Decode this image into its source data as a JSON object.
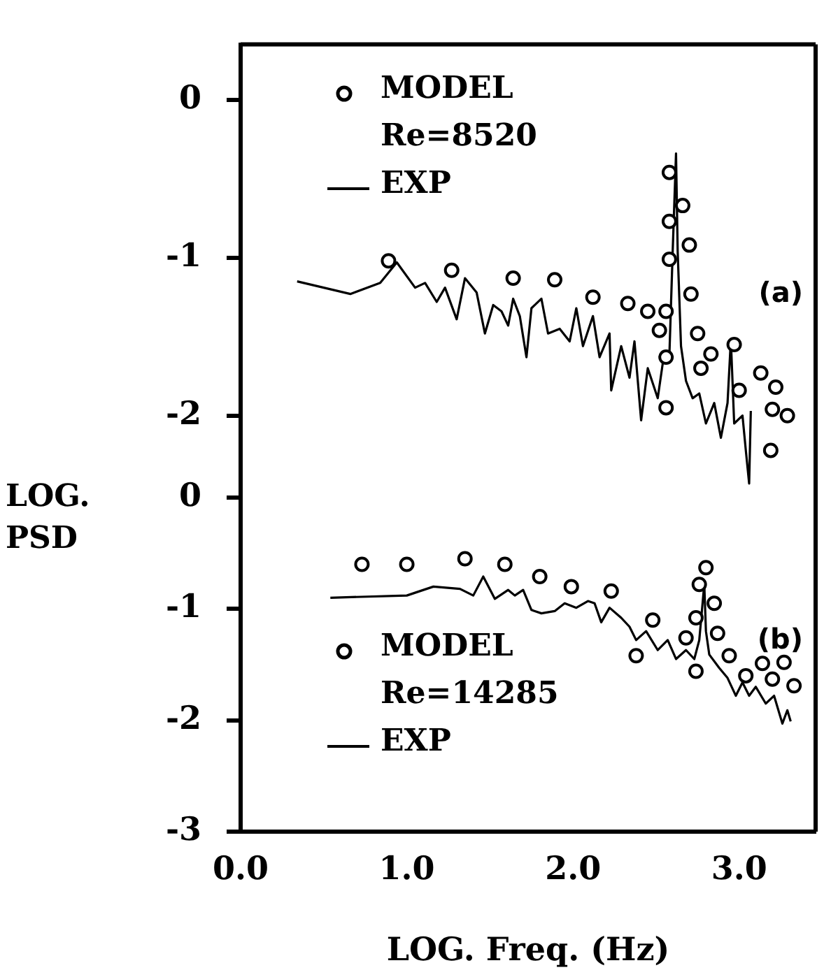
{
  "chart_data": [
    {
      "type": "line",
      "legend": "top left",
      "legend_title": "Re=8520",
      "annotations": [
        "(a)"
      ],
      "xlim": [
        0,
        3.46
      ],
      "ylim": [
        -2.45,
        0.35
      ],
      "yticks": [
        0,
        -1,
        -2
      ],
      "tick_labels": "y",
      "series": [
        {
          "name": "MODEL",
          "type": "scatter",
          "marker": "circle",
          "color": "#000000",
          "x": [
            0.89,
            1.27,
            1.64,
            1.89,
            2.12,
            2.33,
            2.45,
            2.52,
            2.56,
            2.56,
            2.56,
            2.58,
            2.58,
            2.58,
            2.66,
            2.7,
            2.71,
            2.75,
            2.83,
            2.77,
            2.97,
            3.0,
            3.13,
            3.22,
            3.2,
            3.29,
            3.19
          ],
          "values": [
            -1.02,
            -1.08,
            -1.13,
            -1.14,
            -1.25,
            -1.29,
            -1.34,
            -1.46,
            -1.34,
            -1.63,
            -1.95,
            -1.01,
            -0.77,
            -0.46,
            -0.67,
            -0.92,
            -1.23,
            -1.48,
            -1.61,
            -1.7,
            -1.55,
            -1.84,
            -1.73,
            -1.82,
            -1.96,
            -2.0,
            -2.22
          ]
        },
        {
          "name": "EXP",
          "type": "line",
          "marker": "none",
          "color": "#000000",
          "x": [
            0.34,
            0.66,
            0.84,
            0.94,
            1.05,
            1.11,
            1.18,
            1.23,
            1.3,
            1.35,
            1.42,
            1.47,
            1.52,
            1.57,
            1.61,
            1.64,
            1.68,
            1.72,
            1.75,
            1.81,
            1.85,
            1.92,
            1.98,
            2.02,
            2.06,
            2.12,
            2.16,
            2.22,
            2.23,
            2.29,
            2.34,
            2.37,
            2.41,
            2.45,
            2.51,
            2.54,
            2.58,
            2.6,
            2.62,
            2.63,
            2.65,
            2.68,
            2.72,
            2.76,
            2.8,
            2.85,
            2.89,
            2.93,
            2.95,
            2.97,
            3.02,
            3.04,
            3.06,
            3.07
          ],
          "values": [
            -1.15,
            -1.23,
            -1.16,
            -1.03,
            -1.19,
            -1.16,
            -1.28,
            -1.19,
            -1.39,
            -1.13,
            -1.22,
            -1.48,
            -1.3,
            -1.34,
            -1.43,
            -1.26,
            -1.37,
            -1.63,
            -1.32,
            -1.26,
            -1.48,
            -1.45,
            -1.53,
            -1.32,
            -1.56,
            -1.37,
            -1.63,
            -1.48,
            -1.84,
            -1.56,
            -1.76,
            -1.53,
            -2.03,
            -1.7,
            -1.89,
            -1.67,
            -1.62,
            -0.96,
            -0.34,
            -0.96,
            -1.56,
            -1.78,
            -1.89,
            -1.86,
            -2.05,
            -1.92,
            -2.14,
            -1.92,
            -1.52,
            -2.05,
            -2.0,
            -2.22,
            -2.43,
            -1.97
          ]
        }
      ]
    },
    {
      "type": "line",
      "xlabel": "LOG. Freq. (Hz)",
      "ylabel": "LOG. PSD",
      "legend": "bottom left",
      "legend_title": "Re=14285",
      "annotations": [
        "(b)"
      ],
      "xlim": [
        0,
        3.46
      ],
      "xticks": [
        {
          "value": 0,
          "label": "0.0"
        },
        {
          "value": 1,
          "label": "1.0"
        },
        {
          "value": 2,
          "label": "2.0"
        },
        {
          "value": 3,
          "label": "3.0"
        }
      ],
      "ylim": [
        -3,
        0.2
      ],
      "yticks": [
        0,
        -1,
        -2,
        -3
      ],
      "series": [
        {
          "name": "MODEL",
          "type": "scatter",
          "marker": "circle",
          "color": "#000000",
          "x": [
            0.73,
            1.0,
            1.35,
            1.59,
            1.8,
            1.99,
            2.23,
            2.38,
            2.48,
            2.68,
            2.74,
            2.74,
            2.76,
            2.8,
            2.85,
            2.87,
            2.94,
            3.04,
            3.14,
            3.2,
            3.27,
            3.33
          ],
          "values": [
            -0.6,
            -0.6,
            -0.55,
            -0.6,
            -0.71,
            -0.8,
            -0.84,
            -1.42,
            -1.1,
            -1.26,
            -1.08,
            -1.56,
            -0.78,
            -0.63,
            -0.95,
            -1.22,
            -1.42,
            -1.6,
            -1.49,
            -1.63,
            -1.48,
            -1.69
          ]
        },
        {
          "name": "EXP",
          "type": "line",
          "marker": "none",
          "color": "#000000",
          "x": [
            0.54,
            1.0,
            1.16,
            1.32,
            1.4,
            1.46,
            1.53,
            1.61,
            1.65,
            1.7,
            1.75,
            1.81,
            1.89,
            1.95,
            2.02,
            2.09,
            2.13,
            2.17,
            2.22,
            2.29,
            2.34,
            2.38,
            2.44,
            2.51,
            2.57,
            2.62,
            2.68,
            2.73,
            2.76,
            2.79,
            2.8,
            2.82,
            2.88,
            2.93,
            2.98,
            3.02,
            3.06,
            3.1,
            3.16,
            3.21,
            3.26,
            3.29,
            3.31
          ],
          "values": [
            -0.9,
            -0.88,
            -0.8,
            -0.82,
            -0.88,
            -0.71,
            -0.91,
            -0.83,
            -0.88,
            -0.83,
            -1.01,
            -1.04,
            -1.02,
            -0.95,
            -0.99,
            -0.93,
            -0.95,
            -1.12,
            -0.99,
            -1.08,
            -1.16,
            -1.28,
            -1.2,
            -1.37,
            -1.28,
            -1.45,
            -1.37,
            -1.45,
            -1.28,
            -0.78,
            -1.2,
            -1.41,
            -1.53,
            -1.62,
            -1.78,
            -1.66,
            -1.78,
            -1.7,
            -1.85,
            -1.78,
            -2.03,
            -1.91,
            -2.01
          ]
        }
      ]
    }
  ]
}
